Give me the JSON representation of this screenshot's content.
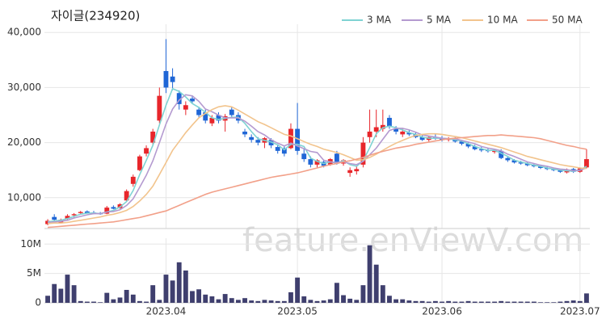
{
  "chart_data": {
    "type": "candlestick",
    "title": "자이글(234920)",
    "watermark": "feature.enViewV.com",
    "grid": true,
    "up_color": "#e8262b",
    "down_color": "#1f66d6",
    "categories": [
      null,
      null,
      null,
      null,
      null,
      null,
      null,
      null,
      null,
      null,
      null,
      null,
      null,
      null,
      null,
      null,
      null,
      null,
      "2023.04",
      null,
      null,
      null,
      null,
      null,
      null,
      null,
      null,
      null,
      null,
      null,
      null,
      null,
      null,
      null,
      null,
      null,
      null,
      null,
      "2023.05",
      null,
      null,
      null,
      null,
      null,
      null,
      null,
      null,
      null,
      null,
      null,
      null,
      null,
      null,
      null,
      null,
      null,
      null,
      null,
      null,
      null,
      "2023.06",
      null,
      null,
      null,
      null,
      null,
      null,
      null,
      null,
      null,
      null,
      null,
      null,
      null,
      null,
      null,
      null,
      null,
      null,
      null,
      null,
      "2023.07",
      null
    ],
    "open": [
      5200,
      6500,
      5500,
      6200,
      6800,
      7200,
      7500,
      7300,
      7200,
      7100,
      8300,
      8100,
      9500,
      12500,
      15000,
      18000,
      20000,
      24000,
      33000,
      32000,
      29000,
      26000,
      28000,
      26000,
      25500,
      23500,
      25000,
      24000,
      26000,
      25000,
      22000,
      21000,
      20500,
      20000,
      20500,
      19200,
      19000,
      19000,
      22500,
      18000,
      17000,
      16000,
      16500,
      16000,
      18000,
      16200,
      14500,
      14800,
      16000,
      21000,
      22000,
      22500,
      24500,
      22500,
      21500,
      21800,
      21500,
      21000,
      20500,
      21000,
      20800,
      20500,
      20800,
      20200,
      19800,
      19300,
      18800,
      18600,
      18300,
      18500,
      17200,
      16800,
      16400,
      16200,
      15900,
      15700,
      15400,
      15200,
      15000,
      14600,
      15200,
      14700,
      15500
    ],
    "high": [
      6100,
      7000,
      6200,
      7000,
      7200,
      7600,
      7700,
      7600,
      7400,
      8500,
      8600,
      9000,
      11500,
      14200,
      17800,
      19500,
      22500,
      30000,
      38800,
      33500,
      29500,
      27500,
      28500,
      26500,
      26000,
      25000,
      25500,
      25200,
      26500,
      25500,
      22500,
      21500,
      21000,
      21000,
      20800,
      19500,
      19500,
      23500,
      27200,
      19000,
      17500,
      17000,
      16800,
      17200,
      18500,
      17000,
      15500,
      15800,
      21000,
      26000,
      26000,
      26000,
      25000,
      23000,
      22500,
      22300,
      22000,
      21500,
      21200,
      21500,
      21200,
      21000,
      21000,
      20500,
      20000,
      19600,
      19200,
      19000,
      18800,
      18800,
      17500,
      17000,
      16700,
      16500,
      16200,
      16000,
      15700,
      15400,
      15200,
      15300,
      15400,
      15500,
      18800
    ],
    "low": [
      5000,
      5800,
      5300,
      6000,
      6400,
      7000,
      7100,
      7000,
      6900,
      7000,
      7900,
      8000,
      9300,
      12000,
      14800,
      17500,
      19500,
      23500,
      29000,
      29500,
      26000,
      25000,
      27000,
      24500,
      23500,
      23000,
      23500,
      22000,
      24500,
      23500,
      21000,
      20000,
      19500,
      19000,
      19000,
      18000,
      17500,
      18800,
      17800,
      16500,
      15500,
      15500,
      15500,
      15800,
      16000,
      15800,
      13800,
      14200,
      15500,
      20000,
      21000,
      22000,
      22500,
      21500,
      21000,
      21200,
      20800,
      20300,
      20200,
      20500,
      20200,
      20200,
      20000,
      19500,
      19000,
      18600,
      18300,
      18200,
      18000,
      17000,
      16500,
      16200,
      16000,
      15700,
      15500,
      15200,
      15000,
      14800,
      14500,
      14400,
      14500,
      14500,
      15300
    ],
    "close": [
      5800,
      6000,
      6000,
      6700,
      7000,
      7400,
      7200,
      7100,
      7000,
      8200,
      8000,
      8800,
      11200,
      13800,
      17500,
      19000,
      22000,
      28500,
      30000,
      31000,
      27000,
      26800,
      27500,
      25000,
      24000,
      24500,
      24000,
      24800,
      25000,
      24000,
      21500,
      20500,
      20000,
      20800,
      19500,
      18500,
      18000,
      22500,
      18500,
      17000,
      16000,
      16800,
      15800,
      17000,
      16200,
      16800,
      15000,
      15200,
      20000,
      22000,
      22800,
      23200,
      23000,
      22000,
      22000,
      21500,
      21000,
      20500,
      21000,
      20800,
      20500,
      20800,
      20200,
      19800,
      19300,
      18800,
      18600,
      18500,
      18600,
      17200,
      16800,
      16400,
      16200,
      15900,
      15700,
      15400,
      15200,
      15000,
      14700,
      15100,
      14700,
      15300,
      17000
    ],
    "ylim": [
      4400,
      41500
    ],
    "yticks": [
      {
        "value": 10000,
        "label": "10,000"
      },
      {
        "value": 20000,
        "label": "20,000"
      },
      {
        "value": 30000,
        "label": "30,000"
      },
      {
        "value": 40000,
        "label": "40,000"
      }
    ],
    "series": [
      {
        "name": "3 MA",
        "color": "#7fd3d3",
        "values": [
          5600,
          5800,
          5900,
          6200,
          6600,
          7000,
          7200,
          7200,
          7100,
          7400,
          7700,
          8300,
          9300,
          11300,
          14200,
          16800,
          19500,
          23200,
          26800,
          29800,
          29300,
          28300,
          27100,
          26400,
          25500,
          24500,
          24200,
          24400,
          24600,
          24600,
          23500,
          22000,
          20700,
          20400,
          20100,
          19600,
          18700,
          19700,
          19700,
          19300,
          17200,
          16600,
          16200,
          16500,
          16300,
          16700,
          16000,
          15700,
          16700,
          19100,
          21600,
          22700,
          23000,
          22700,
          22300,
          21800,
          21500,
          21000,
          20800,
          20800,
          20800,
          20700,
          20500,
          20300,
          19800,
          19300,
          18900,
          18600,
          18600,
          18100,
          17500,
          16800,
          16500,
          16200,
          15900,
          15700,
          15400,
          15200,
          15000,
          14900,
          14800,
          15000,
          15700
        ]
      },
      {
        "name": "5 MA",
        "color": "#b49ad0",
        "values": [
          5500,
          5600,
          5700,
          5900,
          6300,
          6600,
          6900,
          7100,
          7100,
          7400,
          7500,
          7800,
          8600,
          9800,
          11900,
          14100,
          16700,
          20000,
          23400,
          26100,
          27700,
          28700,
          28500,
          27500,
          26100,
          25600,
          25000,
          24500,
          24500,
          24500,
          23900,
          23000,
          22000,
          21400,
          20500,
          19900,
          19400,
          19900,
          19400,
          18900,
          18400,
          18200,
          16800,
          16500,
          16400,
          16500,
          16200,
          16000,
          16600,
          17800,
          19000,
          20600,
          22200,
          22600,
          22600,
          22300,
          21900,
          21400,
          21200,
          21000,
          20800,
          20700,
          20700,
          20400,
          20100,
          19800,
          19300,
          19000,
          18800,
          18500,
          17900,
          17500,
          17000,
          16500,
          16200,
          15900,
          15700,
          15400,
          15200,
          15100,
          14900,
          15000,
          15400
        ]
      },
      {
        "name": "10 MA",
        "color": "#f2c48d",
        "values": [
          5300,
          5400,
          5400,
          5500,
          5700,
          5900,
          6100,
          6300,
          6500,
          6800,
          7000,
          7300,
          7700,
          8400,
          9400,
          10600,
          12100,
          14200,
          16400,
          18600,
          20200,
          21800,
          23200,
          24500,
          25300,
          26000,
          26500,
          26700,
          26500,
          25900,
          25200,
          24500,
          23800,
          23300,
          22700,
          22100,
          21500,
          21200,
          20700,
          20200,
          19700,
          19300,
          18800,
          18500,
          18200,
          17800,
          17300,
          16800,
          16900,
          17300,
          17900,
          18600,
          19300,
          19900,
          20400,
          20900,
          21300,
          21500,
          21600,
          21600,
          21500,
          21300,
          21100,
          20900,
          20600,
          20300,
          20000,
          19700,
          19400,
          19100,
          18700,
          18300,
          17900,
          17500,
          17200,
          16900,
          16600,
          16300,
          16000,
          15800,
          15600,
          15400,
          15300
        ]
      },
      {
        "name": "50 MA",
        "color": "#f2a089",
        "values": [
          4600,
          4700,
          4800,
          4900,
          5000,
          5100,
          5200,
          5300,
          5400,
          5500,
          5600,
          5800,
          6000,
          6200,
          6400,
          6700,
          7000,
          7300,
          7600,
          8100,
          8600,
          9100,
          9600,
          10100,
          10600,
          11000,
          11300,
          11600,
          11900,
          12200,
          12500,
          12800,
          13100,
          13400,
          13700,
          13900,
          14100,
          14300,
          14500,
          14800,
          15100,
          15400,
          15700,
          16000,
          16200,
          16500,
          16700,
          17000,
          17300,
          17700,
          18100,
          18400,
          18700,
          19000,
          19200,
          19400,
          19700,
          19900,
          20100,
          20300,
          20500,
          20700,
          20800,
          20900,
          21000,
          21100,
          21200,
          21300,
          21300,
          21400,
          21300,
          21200,
          21100,
          21000,
          20900,
          20700,
          20400,
          20100,
          19800,
          19500,
          19300,
          19000,
          18800
        ]
      }
    ],
    "volume": {
      "color": "#3f3f6e",
      "ylim": [
        0,
        11000000
      ],
      "yticks": [
        0,
        {
          "value": 5000000,
          "label": "5M"
        },
        {
          "value": 10000000,
          "label": "10M"
        }
      ],
      "values": [
        1200000,
        3200000,
        2400000,
        4800000,
        3000000,
        300000,
        200000,
        200000,
        100000,
        1700000,
        600000,
        900000,
        2200000,
        1400000,
        300000,
        200000,
        3000000,
        500000,
        4800000,
        3800000,
        6900000,
        5500000,
        2000000,
        2300000,
        1400000,
        1100000,
        600000,
        1500000,
        800000,
        500000,
        800000,
        400000,
        300000,
        500000,
        400000,
        300000,
        300000,
        1800000,
        4300000,
        1100000,
        500000,
        300000,
        400000,
        600000,
        3400000,
        1300000,
        700000,
        500000,
        3000000,
        9800000,
        6500000,
        3000000,
        1200000,
        600000,
        600000,
        400000,
        300000,
        300000,
        200000,
        300000,
        200000,
        300000,
        200000,
        200000,
        300000,
        200000,
        200000,
        200000,
        200000,
        300000,
        200000,
        200000,
        200000,
        200000,
        200000,
        100000,
        100000,
        100000,
        200000,
        300000,
        400000,
        300000,
        1600000
      ]
    }
  }
}
